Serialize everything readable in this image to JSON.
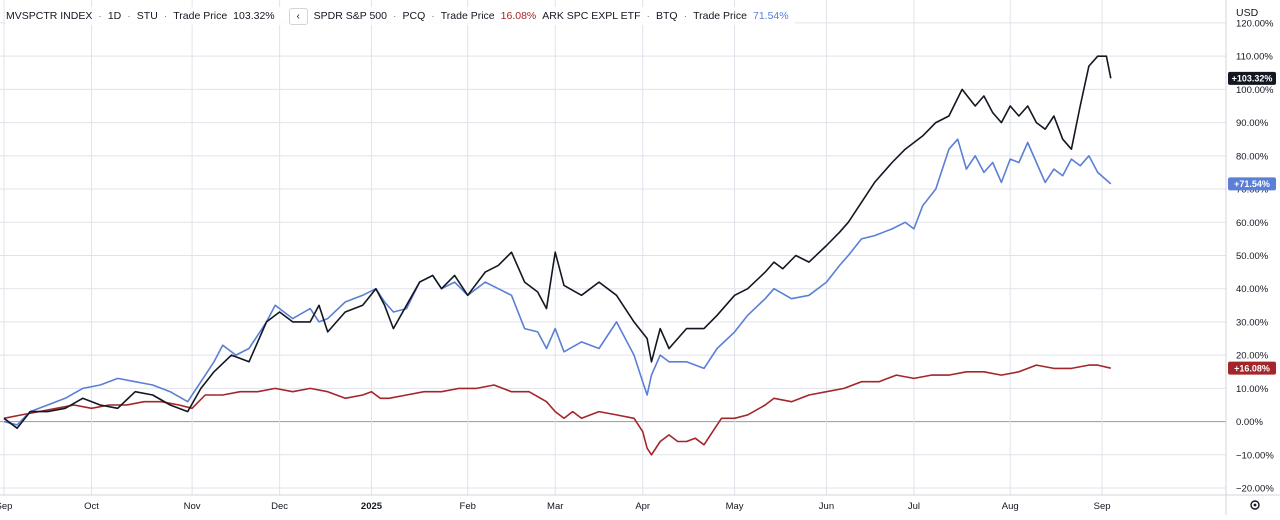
{
  "legend": {
    "s1_name": "MVSPCTR INDEX",
    "s1_interval": "1D",
    "s1_exchange": "STU",
    "s1_price_label": "Trade Price",
    "s1_value": "103.32%",
    "s2_name": "SPDR S&P 500",
    "s2_exchange": "PCQ",
    "s2_price_label": "Trade Price",
    "s2_value": "16.08%",
    "s3_name": "ARK SPC EXPL ETF",
    "s3_exchange": "BTQ",
    "s3_price_label": "Trade Price",
    "s3_value": "71.54%",
    "collapse_icon": "chevron-left-icon",
    "dot": "·"
  },
  "currency": "USD",
  "settings_icon": "gear-icon",
  "colors": {
    "s1": "#131722",
    "s2": "#a3262a",
    "s3": "#5b7fd6",
    "grid": "#e0e3eb"
  },
  "chart_data": {
    "type": "line",
    "xlabel": "",
    "ylabel": "",
    "ylim": [
      -23,
      126
    ],
    "xlim": [
      0,
      263
    ],
    "grid": true,
    "y_ticks": [
      "120.00%",
      "110.00%",
      "100.00%",
      "90.00%",
      "80.00%",
      "70.00%",
      "60.00%",
      "50.00%",
      "40.00%",
      "30.00%",
      "20.00%",
      "10.00%",
      "0.00%",
      "−10.00%",
      "−20.00%"
    ],
    "y_tick_values": [
      120,
      110,
      100,
      90,
      80,
      70,
      60,
      50,
      40,
      30,
      20,
      10,
      0,
      -10,
      -20
    ],
    "x_ticks": [
      {
        "label": "Sep",
        "t": 0
      },
      {
        "label": "Oct",
        "t": 20
      },
      {
        "label": "Nov",
        "t": 43
      },
      {
        "label": "Dec",
        "t": 63
      },
      {
        "label": "2025",
        "t": 84
      },
      {
        "label": "Feb",
        "t": 106
      },
      {
        "label": "Mar",
        "t": 126
      },
      {
        "label": "Apr",
        "t": 146
      },
      {
        "label": "May",
        "t": 167
      },
      {
        "label": "Jun",
        "t": 188
      },
      {
        "label": "Jul",
        "t": 208
      },
      {
        "label": "Aug",
        "t": 230
      },
      {
        "label": "Sep",
        "t": 251
      }
    ],
    "series": [
      {
        "name": "MVSPCTR INDEX",
        "badge": "+103.32%",
        "points": [
          [
            0,
            1
          ],
          [
            3,
            -2
          ],
          [
            6,
            3
          ],
          [
            10,
            3
          ],
          [
            14,
            4
          ],
          [
            18,
            7
          ],
          [
            22,
            5
          ],
          [
            26,
            4
          ],
          [
            30,
            9
          ],
          [
            34,
            8
          ],
          [
            38,
            5
          ],
          [
            42,
            3
          ],
          [
            45,
            10
          ],
          [
            48,
            15
          ],
          [
            52,
            20
          ],
          [
            56,
            18
          ],
          [
            60,
            30
          ],
          [
            63,
            33
          ],
          [
            66,
            30
          ],
          [
            70,
            30
          ],
          [
            72,
            35
          ],
          [
            74,
            27
          ],
          [
            78,
            33
          ],
          [
            82,
            35
          ],
          [
            85,
            40
          ],
          [
            87,
            35
          ],
          [
            89,
            28
          ],
          [
            92,
            35
          ],
          [
            95,
            42
          ],
          [
            98,
            44
          ],
          [
            100,
            40
          ],
          [
            103,
            44
          ],
          [
            106,
            38
          ],
          [
            110,
            45
          ],
          [
            113,
            47
          ],
          [
            116,
            51
          ],
          [
            119,
            42
          ],
          [
            122,
            39
          ],
          [
            124,
            34
          ],
          [
            126,
            51
          ],
          [
            128,
            41
          ],
          [
            132,
            38
          ],
          [
            136,
            42
          ],
          [
            140,
            38
          ],
          [
            144,
            30
          ],
          [
            147,
            25
          ],
          [
            148,
            18
          ],
          [
            150,
            28
          ],
          [
            152,
            22
          ],
          [
            156,
            28
          ],
          [
            160,
            28
          ],
          [
            163,
            32
          ],
          [
            167,
            38
          ],
          [
            170,
            40
          ],
          [
            174,
            45
          ],
          [
            176,
            48
          ],
          [
            178,
            46
          ],
          [
            181,
            50
          ],
          [
            184,
            48
          ],
          [
            188,
            53
          ],
          [
            191,
            57
          ],
          [
            193,
            60
          ],
          [
            196,
            66
          ],
          [
            199,
            72
          ],
          [
            203,
            78
          ],
          [
            206,
            82
          ],
          [
            210,
            86
          ],
          [
            213,
            90
          ],
          [
            216,
            92
          ],
          [
            219,
            100
          ],
          [
            222,
            95
          ],
          [
            224,
            98
          ],
          [
            226,
            93
          ],
          [
            228,
            90
          ],
          [
            230,
            95
          ],
          [
            232,
            92
          ],
          [
            234,
            95
          ],
          [
            236,
            90
          ],
          [
            238,
            88
          ],
          [
            240,
            92
          ],
          [
            242,
            85
          ],
          [
            244,
            82
          ],
          [
            246,
            95
          ],
          [
            248,
            107
          ],
          [
            250,
            110
          ],
          [
            252,
            110
          ],
          [
            253,
            103.32
          ]
        ]
      },
      {
        "name": "SPDR S&P 500",
        "badge": "+16.08%",
        "points": [
          [
            0,
            1
          ],
          [
            4,
            2
          ],
          [
            8,
            3
          ],
          [
            12,
            4
          ],
          [
            16,
            5
          ],
          [
            20,
            4
          ],
          [
            24,
            5
          ],
          [
            28,
            5
          ],
          [
            32,
            6
          ],
          [
            36,
            6
          ],
          [
            40,
            5
          ],
          [
            43,
            4
          ],
          [
            46,
            8
          ],
          [
            50,
            8
          ],
          [
            54,
            9
          ],
          [
            58,
            9
          ],
          [
            62,
            10
          ],
          [
            66,
            9
          ],
          [
            70,
            10
          ],
          [
            74,
            9
          ],
          [
            78,
            7
          ],
          [
            82,
            8
          ],
          [
            84,
            9
          ],
          [
            86,
            7
          ],
          [
            88,
            7
          ],
          [
            92,
            8
          ],
          [
            96,
            9
          ],
          [
            100,
            9
          ],
          [
            104,
            10
          ],
          [
            108,
            10
          ],
          [
            112,
            11
          ],
          [
            116,
            9
          ],
          [
            120,
            9
          ],
          [
            124,
            6
          ],
          [
            126,
            3
          ],
          [
            128,
            1
          ],
          [
            130,
            3
          ],
          [
            132,
            1
          ],
          [
            136,
            3
          ],
          [
            140,
            2
          ],
          [
            144,
            1
          ],
          [
            146,
            -3
          ],
          [
            147,
            -8
          ],
          [
            148,
            -10
          ],
          [
            150,
            -6
          ],
          [
            152,
            -4
          ],
          [
            154,
            -6
          ],
          [
            156,
            -6
          ],
          [
            158,
            -5
          ],
          [
            160,
            -7
          ],
          [
            162,
            -3
          ],
          [
            164,
            1
          ],
          [
            167,
            1
          ],
          [
            170,
            2
          ],
          [
            174,
            5
          ],
          [
            176,
            7
          ],
          [
            180,
            6
          ],
          [
            184,
            8
          ],
          [
            188,
            9
          ],
          [
            192,
            10
          ],
          [
            196,
            12
          ],
          [
            200,
            12
          ],
          [
            204,
            14
          ],
          [
            208,
            13
          ],
          [
            212,
            14
          ],
          [
            216,
            14
          ],
          [
            220,
            15
          ],
          [
            224,
            15
          ],
          [
            228,
            14
          ],
          [
            232,
            15
          ],
          [
            236,
            17
          ],
          [
            240,
            16
          ],
          [
            244,
            16
          ],
          [
            248,
            17
          ],
          [
            250,
            17
          ],
          [
            253,
            16.08
          ]
        ]
      },
      {
        "name": "ARK SPC EXPL ETF",
        "badge": "+71.54%",
        "points": [
          [
            0,
            0
          ],
          [
            3,
            -1
          ],
          [
            6,
            3
          ],
          [
            10,
            5
          ],
          [
            14,
            7
          ],
          [
            18,
            10
          ],
          [
            22,
            11
          ],
          [
            26,
            13
          ],
          [
            30,
            12
          ],
          [
            34,
            11
          ],
          [
            38,
            9
          ],
          [
            42,
            6
          ],
          [
            45,
            12
          ],
          [
            48,
            18
          ],
          [
            50,
            23
          ],
          [
            53,
            20
          ],
          [
            56,
            22
          ],
          [
            60,
            30
          ],
          [
            62,
            35
          ],
          [
            66,
            31
          ],
          [
            70,
            34
          ],
          [
            72,
            30
          ],
          [
            74,
            31
          ],
          [
            78,
            36
          ],
          [
            82,
            38
          ],
          [
            85,
            40
          ],
          [
            87,
            36
          ],
          [
            89,
            33
          ],
          [
            92,
            34
          ],
          [
            95,
            42
          ],
          [
            98,
            44
          ],
          [
            100,
            40
          ],
          [
            103,
            42
          ],
          [
            106,
            38
          ],
          [
            110,
            42
          ],
          [
            113,
            40
          ],
          [
            116,
            38
          ],
          [
            119,
            28
          ],
          [
            122,
            27
          ],
          [
            124,
            22
          ],
          [
            126,
            28
          ],
          [
            128,
            21
          ],
          [
            132,
            24
          ],
          [
            136,
            22
          ],
          [
            140,
            30
          ],
          [
            144,
            20
          ],
          [
            146,
            12
          ],
          [
            147,
            8
          ],
          [
            148,
            14
          ],
          [
            150,
            20
          ],
          [
            152,
            18
          ],
          [
            156,
            18
          ],
          [
            160,
            16
          ],
          [
            163,
            22
          ],
          [
            167,
            27
          ],
          [
            170,
            32
          ],
          [
            174,
            37
          ],
          [
            176,
            40
          ],
          [
            180,
            37
          ],
          [
            184,
            38
          ],
          [
            188,
            42
          ],
          [
            191,
            47
          ],
          [
            193,
            50
          ],
          [
            196,
            55
          ],
          [
            199,
            56
          ],
          [
            203,
            58
          ],
          [
            206,
            60
          ],
          [
            208,
            58
          ],
          [
            210,
            65
          ],
          [
            213,
            70
          ],
          [
            216,
            82
          ],
          [
            218,
            85
          ],
          [
            220,
            76
          ],
          [
            222,
            80
          ],
          [
            224,
            75
          ],
          [
            226,
            78
          ],
          [
            228,
            72
          ],
          [
            230,
            79
          ],
          [
            232,
            78
          ],
          [
            234,
            84
          ],
          [
            236,
            78
          ],
          [
            238,
            72
          ],
          [
            240,
            76
          ],
          [
            242,
            74
          ],
          [
            244,
            79
          ],
          [
            246,
            77
          ],
          [
            248,
            80
          ],
          [
            250,
            75
          ],
          [
            253,
            71.54
          ]
        ]
      }
    ]
  }
}
